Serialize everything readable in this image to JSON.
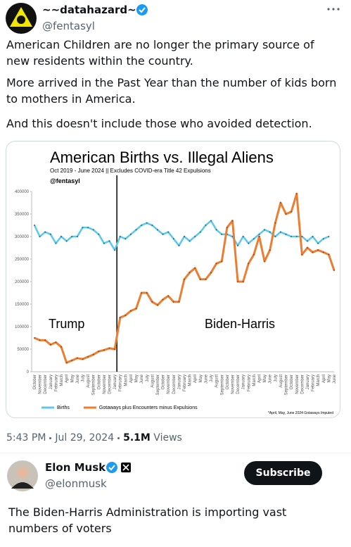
{
  "tweet": {
    "author_name": "~~datahazard~~",
    "handle": "@fentasyl",
    "paragraphs": [
      "American Children are no longer the primary source of new residents within the country.",
      "More arrived in the Past Year than the number of kids born to mothers in America.",
      "And this doesn't include those who avoided detection."
    ],
    "time": "5:43 PM",
    "date": "Jul 29, 2024",
    "views": "5.1M",
    "views_label": "Views"
  },
  "chart_data": {
    "type": "line",
    "title": "American Births vs. Illegal Aliens",
    "subtitle": "Oct 2019 - June 2024 || Excludes COVID-era Title 42 Expulsions",
    "credit": "@fentasyl",
    "footnote": "*April, May, June 2024 Gotaways Imputed",
    "annotations": [
      "Trump",
      "Biden-Harris"
    ],
    "categories": [
      "October",
      "November",
      "December",
      "January",
      "February",
      "March",
      "April",
      "May",
      "June",
      "July",
      "August",
      "September",
      "October",
      "November",
      "December",
      "January",
      "February",
      "March",
      "April",
      "May",
      "June",
      "July",
      "August",
      "September",
      "October",
      "November",
      "December",
      "January",
      "February",
      "March",
      "April",
      "May",
      "June",
      "July",
      "August",
      "September",
      "October",
      "November",
      "December",
      "January",
      "February",
      "March",
      "April",
      "May",
      "June",
      "July",
      "August",
      "September",
      "October",
      "November",
      "December",
      "January",
      "February",
      "March",
      "April",
      "May",
      "June"
    ],
    "series": [
      {
        "name": "Births",
        "color": "#5bc8ec",
        "values": [
          325000,
          300000,
          310000,
          305000,
          285000,
          300000,
          290000,
          300000,
          300000,
          320000,
          320000,
          315000,
          305000,
          285000,
          290000,
          270000,
          300000,
          295000,
          305000,
          315000,
          325000,
          330000,
          325000,
          315000,
          305000,
          310000,
          295000,
          280000,
          300000,
          290000,
          300000,
          310000,
          325000,
          335000,
          315000,
          305000,
          305000,
          300000,
          280000,
          300000,
          285000,
          295000,
          305000,
          315000,
          310000,
          300000,
          310000,
          305000,
          300000,
          300000,
          300000,
          290000,
          300000,
          285000,
          295000,
          300000,
          null
        ]
      },
      {
        "name": "Gotaways plus Encounters minus Expulsions",
        "color": "#ed7d31",
        "values": [
          75000,
          70000,
          70000,
          60000,
          65000,
          55000,
          20000,
          25000,
          30000,
          28000,
          33000,
          38000,
          45000,
          48000,
          52000,
          50000,
          120000,
          125000,
          135000,
          140000,
          175000,
          175000,
          155000,
          148000,
          160000,
          168000,
          155000,
          155000,
          205000,
          220000,
          230000,
          205000,
          205000,
          220000,
          240000,
          245000,
          320000,
          335000,
          200000,
          200000,
          240000,
          260000,
          300000,
          245000,
          270000,
          330000,
          375000,
          350000,
          355000,
          395000,
          260000,
          275000,
          265000,
          270000,
          265000,
          260000,
          225000
        ]
      }
    ],
    "ylim": [
      0,
      400000
    ],
    "yticks": [
      0,
      50000,
      100000,
      150000,
      200000,
      250000,
      300000,
      350000,
      400000
    ],
    "grid": false
  },
  "reply": {
    "author_name": "Elon Musk",
    "handle": "@elonmusk",
    "button": "Subscribe",
    "text": "The Biden-Harris Administration is importing vast numbers of voters"
  }
}
